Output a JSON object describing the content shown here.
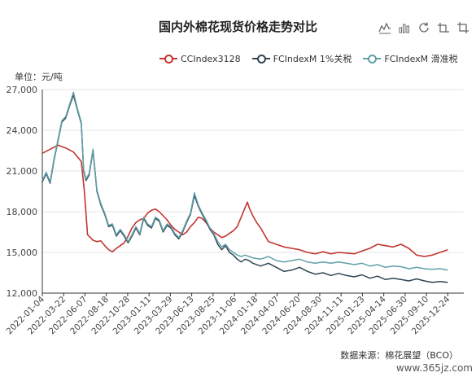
{
  "chart_data": {
    "type": "line",
    "title": "国内外棉花现货价格走势对比",
    "unit_label": "单位：元/吨",
    "source": "数据来源：棉花展望（BCO）",
    "ylim": [
      12000,
      27000
    ],
    "y_ticks": [
      "12,000",
      "15,000",
      "18,000",
      "21,000",
      "24,000",
      "27,000"
    ],
    "y_tick_values": [
      12000,
      15000,
      18000,
      21000,
      24000,
      27000
    ],
    "x_ticks": [
      "2022-01-04",
      "2022-03-22",
      "2022-06-07",
      "2022-08-18",
      "2022-10-28",
      "2023-01-11",
      "2023-03-29",
      "2023-06-13",
      "2023-08-25",
      "2023-11-06",
      "2024-01-18",
      "2024-04-07",
      "2024-06-20",
      "2024-08-30",
      "2024-11-11",
      "2025-01-23",
      "2025-04-14",
      "2025-06-30",
      "2025-09-10",
      "2025-12-24"
    ],
    "grid": true,
    "legend_position": "top",
    "series": [
      {
        "name": "CCIndex3128",
        "color": "#c23531",
        "points": [
          [
            0,
            22300
          ],
          [
            1,
            22600
          ],
          [
            2,
            22900
          ],
          [
            3,
            22700
          ],
          [
            4,
            22400
          ],
          [
            5,
            21700
          ],
          [
            5.4,
            19500
          ],
          [
            5.8,
            16300
          ],
          [
            6.5,
            15900
          ],
          [
            7,
            15800
          ],
          [
            7.5,
            15850
          ],
          [
            8,
            15500
          ],
          [
            8.5,
            15200
          ],
          [
            9,
            15050
          ],
          [
            9.5,
            15300
          ],
          [
            10,
            15500
          ],
          [
            10.5,
            15700
          ],
          [
            11,
            16200
          ],
          [
            11.5,
            16800
          ],
          [
            12,
            17200
          ],
          [
            12.5,
            17400
          ],
          [
            13,
            17500
          ],
          [
            13.5,
            17900
          ],
          [
            14,
            18100
          ],
          [
            14.5,
            18200
          ],
          [
            15,
            18000
          ],
          [
            15.5,
            17700
          ],
          [
            16,
            17400
          ],
          [
            16.5,
            17000
          ],
          [
            17,
            16700
          ],
          [
            17.5,
            16500
          ],
          [
            18,
            16300
          ],
          [
            18.5,
            16500
          ],
          [
            19,
            16900
          ],
          [
            19.5,
            17200
          ],
          [
            20,
            17600
          ],
          [
            20.5,
            17500
          ],
          [
            21,
            17200
          ],
          [
            21.5,
            16800
          ],
          [
            22,
            16500
          ],
          [
            22.5,
            16300
          ],
          [
            23,
            16100
          ],
          [
            23.5,
            16200
          ],
          [
            24,
            16400
          ],
          [
            24.5,
            16600
          ],
          [
            25,
            16900
          ],
          [
            25.5,
            17600
          ],
          [
            26,
            18300
          ],
          [
            26.3,
            18700
          ],
          [
            26.6,
            18200
          ],
          [
            27,
            17700
          ],
          [
            27.5,
            17200
          ],
          [
            28,
            16800
          ],
          [
            28.5,
            16300
          ],
          [
            29,
            15800
          ],
          [
            29.5,
            15700
          ],
          [
            30,
            15600
          ],
          [
            31,
            15400
          ],
          [
            32,
            15300
          ],
          [
            33,
            15200
          ],
          [
            34,
            15000
          ],
          [
            35,
            14900
          ],
          [
            36,
            15050
          ],
          [
            37,
            14900
          ],
          [
            38,
            15000
          ],
          [
            39,
            14950
          ],
          [
            40,
            14900
          ],
          [
            41,
            15100
          ],
          [
            42,
            15300
          ],
          [
            43,
            15600
          ],
          [
            44,
            15500
          ],
          [
            45,
            15400
          ],
          [
            46,
            15600
          ],
          [
            47,
            15300
          ],
          [
            48,
            14800
          ],
          [
            49,
            14700
          ],
          [
            50,
            14800
          ],
          [
            51,
            15000
          ],
          [
            52,
            15200
          ]
        ]
      },
      {
        "name": "FCIndexM 1%关税",
        "color": "#2f4554",
        "points": [
          [
            0,
            20200
          ],
          [
            0.5,
            20800
          ],
          [
            1,
            20100
          ],
          [
            1.5,
            21800
          ],
          [
            2,
            23200
          ],
          [
            2.5,
            24600
          ],
          [
            3,
            24900
          ],
          [
            3.5,
            25800
          ],
          [
            4,
            26600
          ],
          [
            4.5,
            25500
          ],
          [
            5,
            24500
          ],
          [
            5.3,
            21000
          ],
          [
            5.6,
            20300
          ],
          [
            6,
            20700
          ],
          [
            6.5,
            22500
          ],
          [
            7,
            19500
          ],
          [
            7.5,
            18500
          ],
          [
            8,
            17800
          ],
          [
            8.5,
            16900
          ],
          [
            9,
            17000
          ],
          [
            9.5,
            16200
          ],
          [
            10,
            16600
          ],
          [
            10.5,
            16200
          ],
          [
            11,
            15700
          ],
          [
            11.5,
            16200
          ],
          [
            12,
            16800
          ],
          [
            12.5,
            16300
          ],
          [
            13,
            17500
          ],
          [
            13.5,
            17000
          ],
          [
            14,
            16800
          ],
          [
            14.5,
            17500
          ],
          [
            15,
            17300
          ],
          [
            15.5,
            16500
          ],
          [
            16,
            17000
          ],
          [
            16.5,
            16800
          ],
          [
            17,
            16300
          ],
          [
            17.5,
            16000
          ],
          [
            18,
            16500
          ],
          [
            18.5,
            17200
          ],
          [
            19,
            17800
          ],
          [
            19.5,
            19200
          ],
          [
            20,
            18400
          ],
          [
            20.5,
            17800
          ],
          [
            21,
            17300
          ],
          [
            21.5,
            16700
          ],
          [
            22,
            16300
          ],
          [
            22.5,
            15600
          ],
          [
            23,
            15200
          ],
          [
            23.5,
            15500
          ],
          [
            24,
            15000
          ],
          [
            24.5,
            14800
          ],
          [
            25,
            14500
          ],
          [
            25.5,
            14300
          ],
          [
            26,
            14500
          ],
          [
            26.5,
            14400
          ],
          [
            27,
            14200
          ],
          [
            28,
            14000
          ],
          [
            29,
            14200
          ],
          [
            30,
            13900
          ],
          [
            31,
            13600
          ],
          [
            32,
            13700
          ],
          [
            33,
            13900
          ],
          [
            34,
            13600
          ],
          [
            35,
            13400
          ],
          [
            36,
            13500
          ],
          [
            37,
            13300
          ],
          [
            38,
            13450
          ],
          [
            39,
            13300
          ],
          [
            40,
            13200
          ],
          [
            41,
            13350
          ],
          [
            42,
            13100
          ],
          [
            43,
            13250
          ],
          [
            44,
            13000
          ],
          [
            45,
            13100
          ],
          [
            46,
            13000
          ],
          [
            47,
            12900
          ],
          [
            48,
            13050
          ],
          [
            49,
            12900
          ],
          [
            50,
            12800
          ],
          [
            51,
            12850
          ],
          [
            52,
            12800
          ]
        ]
      },
      {
        "name": "FCIndexM 滑准税",
        "color": "#61a0a8",
        "points": [
          [
            0,
            20300
          ],
          [
            0.5,
            20900
          ],
          [
            1,
            20200
          ],
          [
            1.5,
            21900
          ],
          [
            2,
            23300
          ],
          [
            2.5,
            24700
          ],
          [
            3,
            25000
          ],
          [
            3.5,
            25900
          ],
          [
            4,
            26800
          ],
          [
            4.5,
            25600
          ],
          [
            5,
            24600
          ],
          [
            5.3,
            21100
          ],
          [
            5.6,
            20400
          ],
          [
            6,
            20800
          ],
          [
            6.5,
            22600
          ],
          [
            7,
            19600
          ],
          [
            7.5,
            18600
          ],
          [
            8,
            17900
          ],
          [
            8.5,
            17000
          ],
          [
            9,
            17100
          ],
          [
            9.5,
            16300
          ],
          [
            10,
            16700
          ],
          [
            10.5,
            16300
          ],
          [
            11,
            15800
          ],
          [
            11.5,
            16300
          ],
          [
            12,
            16900
          ],
          [
            12.5,
            16400
          ],
          [
            13,
            17600
          ],
          [
            13.5,
            17100
          ],
          [
            14,
            16900
          ],
          [
            14.5,
            17600
          ],
          [
            15,
            17400
          ],
          [
            15.5,
            16600
          ],
          [
            16,
            17100
          ],
          [
            16.5,
            16900
          ],
          [
            17,
            16400
          ],
          [
            17.5,
            16100
          ],
          [
            18,
            16600
          ],
          [
            18.5,
            17300
          ],
          [
            19,
            17900
          ],
          [
            19.5,
            19400
          ],
          [
            20,
            18500
          ],
          [
            20.5,
            17900
          ],
          [
            21,
            17400
          ],
          [
            21.5,
            16800
          ],
          [
            22,
            16400
          ],
          [
            22.5,
            15800
          ],
          [
            23,
            15400
          ],
          [
            23.5,
            15600
          ],
          [
            24,
            15200
          ],
          [
            24.5,
            15000
          ],
          [
            25,
            14800
          ],
          [
            25.5,
            14700
          ],
          [
            26,
            14800
          ],
          [
            26.5,
            14700
          ],
          [
            27,
            14600
          ],
          [
            28,
            14500
          ],
          [
            29,
            14700
          ],
          [
            30,
            14400
          ],
          [
            31,
            14300
          ],
          [
            32,
            14400
          ],
          [
            33,
            14500
          ],
          [
            34,
            14300
          ],
          [
            35,
            14200
          ],
          [
            36,
            14300
          ],
          [
            37,
            14200
          ],
          [
            38,
            14300
          ],
          [
            39,
            14200
          ],
          [
            40,
            14100
          ],
          [
            41,
            14200
          ],
          [
            42,
            14000
          ],
          [
            43,
            14100
          ],
          [
            44,
            13900
          ],
          [
            45,
            14000
          ],
          [
            46,
            13950
          ],
          [
            47,
            13800
          ],
          [
            48,
            13900
          ],
          [
            49,
            13800
          ],
          [
            50,
            13750
          ],
          [
            51,
            13800
          ],
          [
            52,
            13700
          ]
        ]
      }
    ]
  },
  "toolbar": {
    "icons": [
      "line-icon",
      "bar-icon",
      "restore-icon",
      "data-view-icon",
      "save-image-icon"
    ]
  },
  "watermark": "www.365jz.com"
}
